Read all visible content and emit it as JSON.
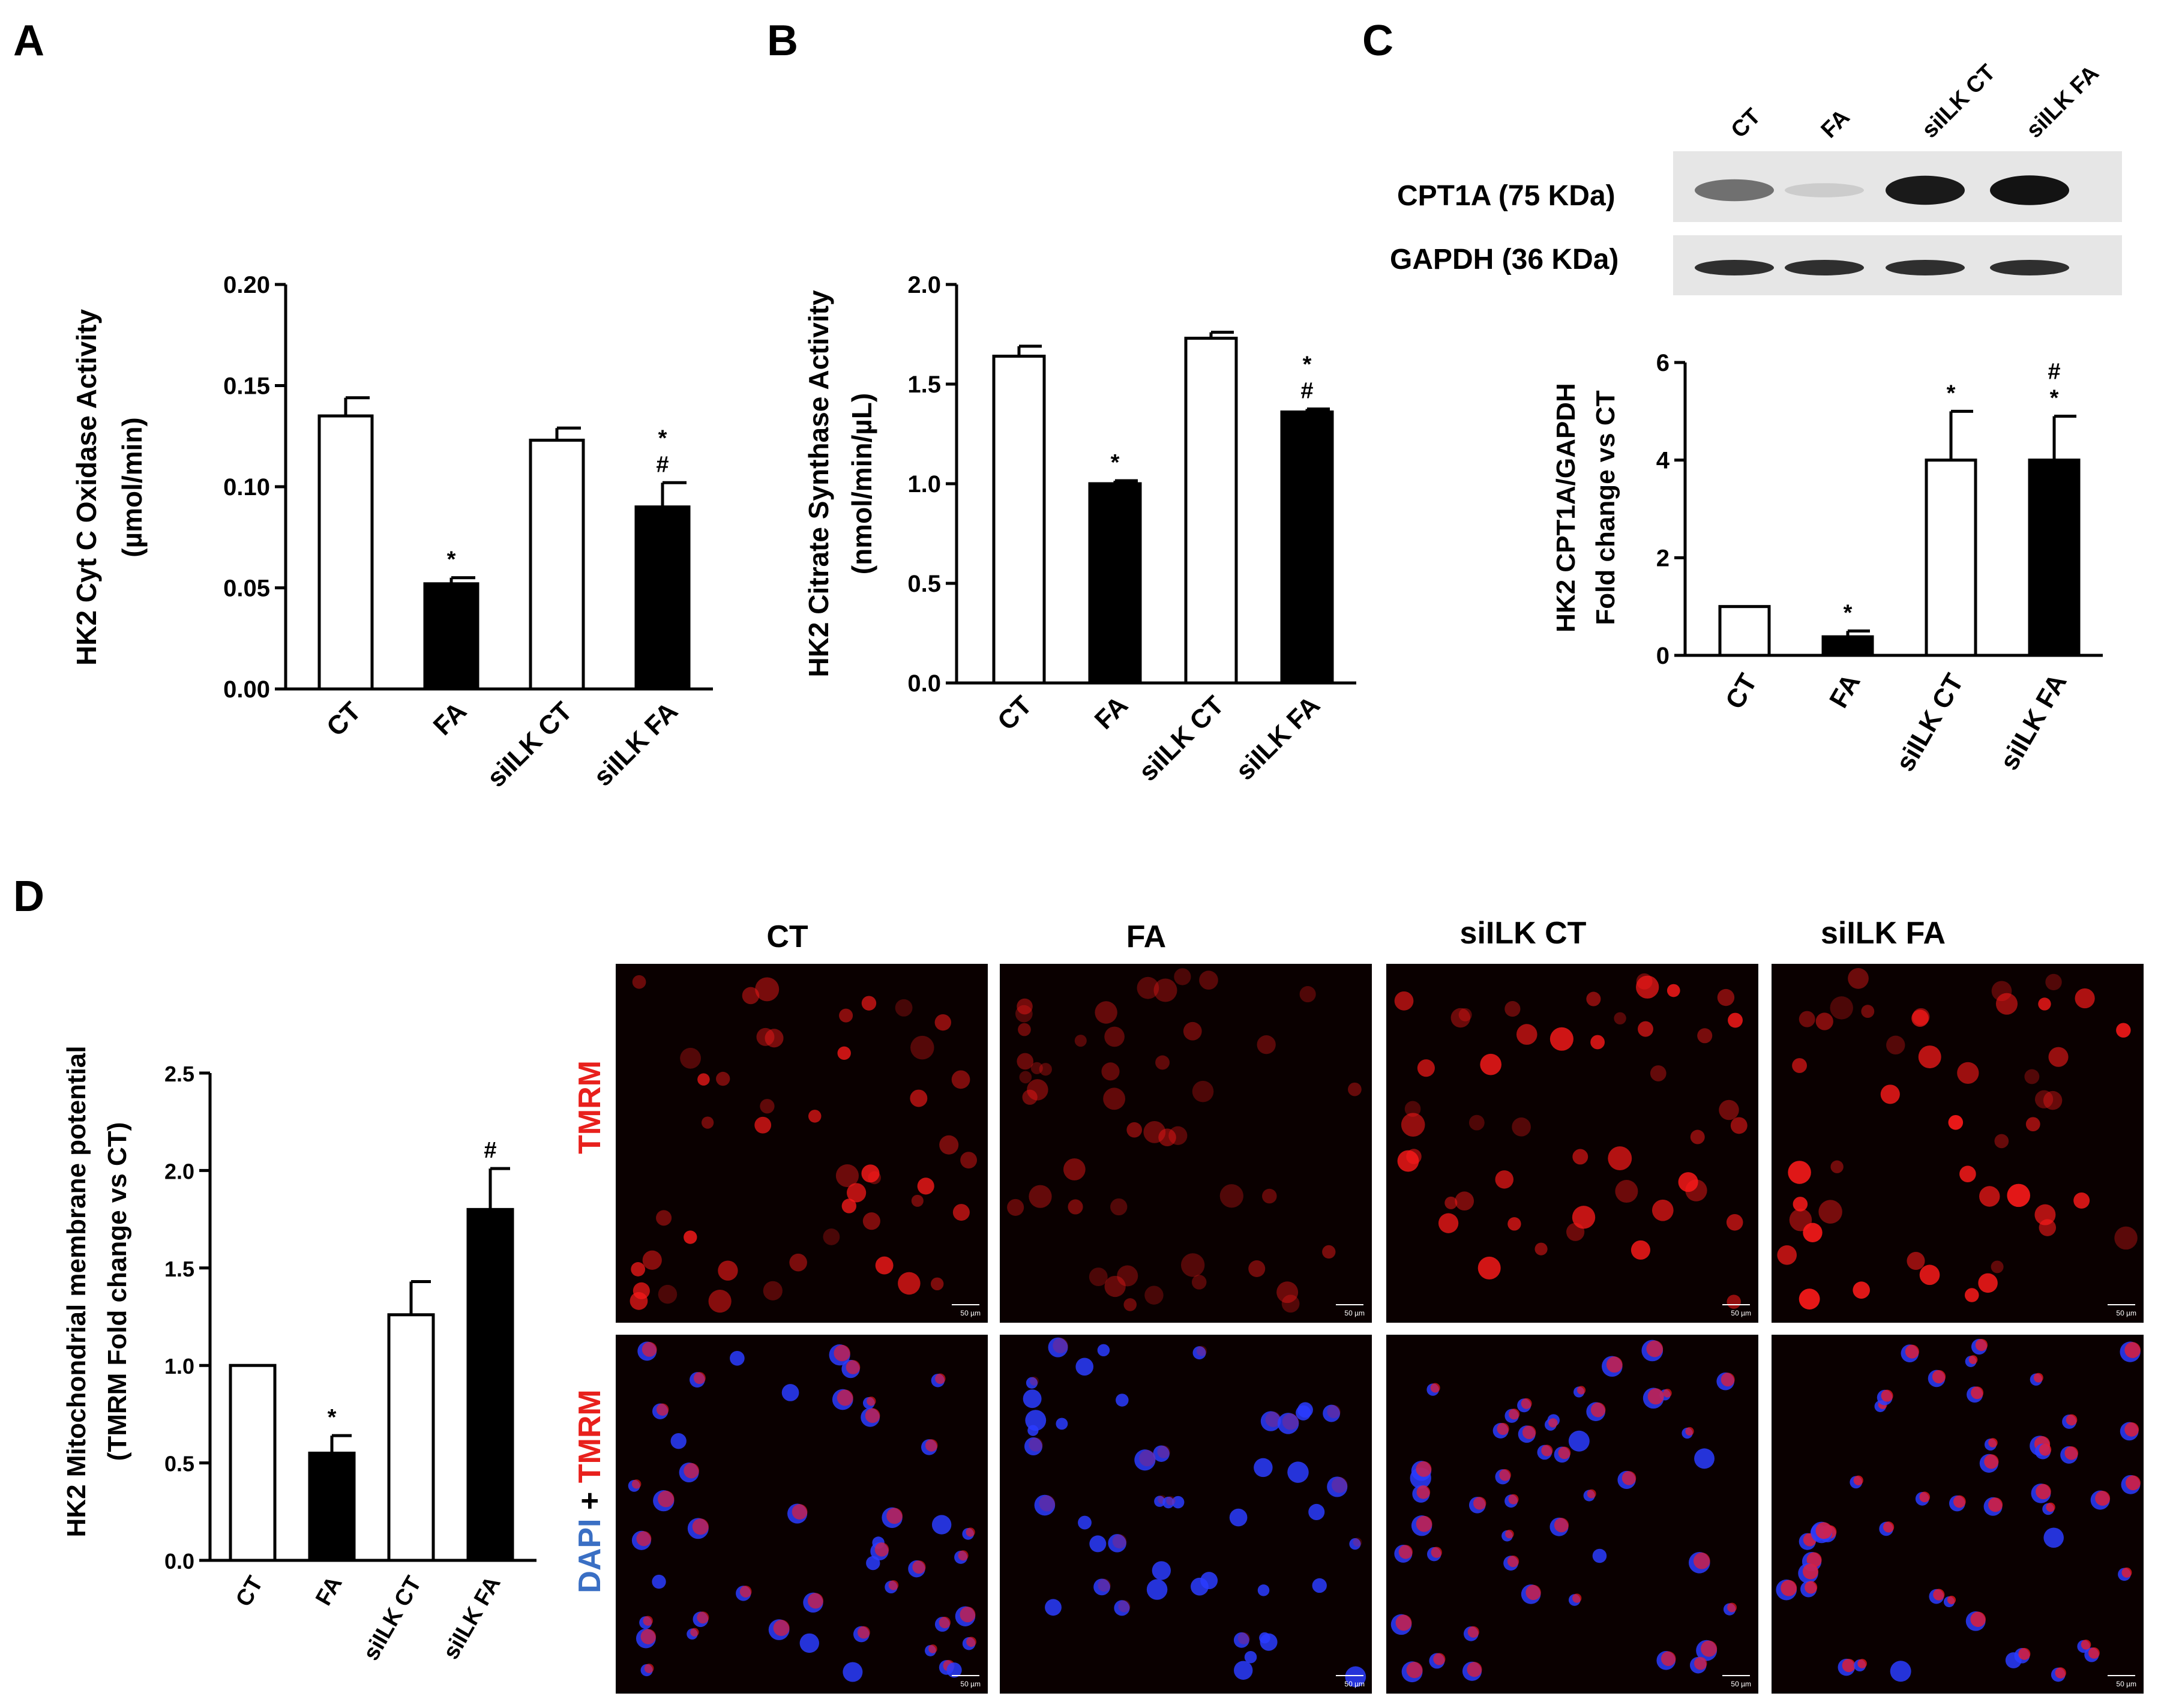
{
  "panels": {
    "A": "A",
    "B": "B",
    "C": "C",
    "D": "D"
  },
  "chart_data": [
    {
      "id": "A",
      "type": "bar",
      "categories": [
        "CT",
        "FA",
        "siILK CT",
        "siILK FA"
      ],
      "values": [
        0.135,
        0.052,
        0.123,
        0.09
      ],
      "errors": [
        0.009,
        0.003,
        0.006,
        0.012
      ],
      "fills": [
        "white",
        "black",
        "white",
        "black"
      ],
      "annotations": [
        [],
        [
          "*"
        ],
        [],
        [
          "*",
          "#"
        ]
      ],
      "ylabel": [
        "HK2 Cyt C Oxidase Activity",
        "(µmol/min)"
      ],
      "ylim": [
        0,
        0.2
      ],
      "yticks": [
        0,
        0.05,
        0.1,
        0.15,
        0.2
      ],
      "ytick_labels": [
        "0.00",
        "0.05",
        "0.10",
        "0.15",
        "0.20"
      ]
    },
    {
      "id": "B",
      "type": "bar",
      "categories": [
        "CT",
        "FA",
        "siILK CT",
        "siILK FA"
      ],
      "values": [
        1.64,
        1.0,
        1.73,
        1.36
      ],
      "errors": [
        0.05,
        0.015,
        0.03,
        0.015
      ],
      "fills": [
        "white",
        "black",
        "white",
        "black"
      ],
      "annotations": [
        [],
        [
          "*"
        ],
        [],
        [
          "*",
          "#"
        ]
      ],
      "ylabel": [
        "HK2 Citrate Synthase Activity",
        "(nmol/min/µL)"
      ],
      "ylim": [
        0,
        2.0
      ],
      "yticks": [
        0,
        0.5,
        1.0,
        1.5,
        2.0
      ],
      "ytick_labels": [
        "0.0",
        "0.5",
        "1.0",
        "1.5",
        "2.0"
      ]
    },
    {
      "id": "C",
      "type": "bar",
      "categories": [
        "CT",
        "FA",
        "siILK CT",
        "siILK FA"
      ],
      "values": [
        1.0,
        0.38,
        4.0,
        4.0
      ],
      "errors": [
        0,
        0.12,
        1.0,
        0.9
      ],
      "fills": [
        "white",
        "black",
        "white",
        "black"
      ],
      "annotations": [
        [],
        [
          "*"
        ],
        [
          "*"
        ],
        [
          "#",
          "*"
        ]
      ],
      "ylabel": [
        "HK2 CPT1A/GAPDH",
        "Fold change vs CT"
      ],
      "ylim": [
        0,
        6
      ],
      "yticks": [
        0,
        2,
        4,
        6
      ],
      "ytick_labels": [
        "0",
        "2",
        "4",
        "6"
      ]
    },
    {
      "id": "D",
      "type": "bar",
      "categories": [
        "CT",
        "FA",
        "siILK CT",
        "siILK FA"
      ],
      "values": [
        1.0,
        0.55,
        1.26,
        1.8
      ],
      "errors": [
        0,
        0.09,
        0.17,
        0.21
      ],
      "fills": [
        "white",
        "black",
        "white",
        "black"
      ],
      "annotations": [
        [],
        [
          "*"
        ],
        [],
        [
          "#"
        ]
      ],
      "ylabel": [
        "HK2 Mitochondrial membrane potential",
        "(TMRM Fold change vs CT)"
      ],
      "ylim": [
        0,
        2.5
      ],
      "yticks": [
        0,
        0.5,
        1.0,
        1.5,
        2.0,
        2.5
      ],
      "ytick_labels": [
        "0.0",
        "0.5",
        "1.0",
        "1.5",
        "2.0",
        "2.5"
      ]
    }
  ],
  "blot": {
    "lanes": [
      "CT",
      "FA",
      "siILK CT",
      "siILK FA"
    ],
    "rows": [
      {
        "label": "CPT1A (75 KDa)",
        "intensity": [
          0.55,
          0.12,
          0.95,
          0.98
        ]
      },
      {
        "label": "GAPDH (36 KDa)",
        "intensity": [
          0.85,
          0.85,
          0.85,
          0.85
        ]
      }
    ]
  },
  "micrographs": {
    "columns": [
      "CT",
      "FA",
      "siILK CT",
      "siILK FA"
    ],
    "row_labels": {
      "top": "TMRM",
      "bottom_dapi": "DAPI",
      "bottom_plus": " + ",
      "bottom_tmrm": "TMRM"
    },
    "scale_bar": "50 µm",
    "tmrm_brightness": [
      0.8,
      0.3,
      0.85,
      0.95
    ],
    "colors": {
      "tmrm": "#ff1a1a",
      "dapi": "#2a3cff"
    }
  },
  "colors": {
    "label_red": "#e8201c",
    "label_blue": "#3a6fc4"
  }
}
